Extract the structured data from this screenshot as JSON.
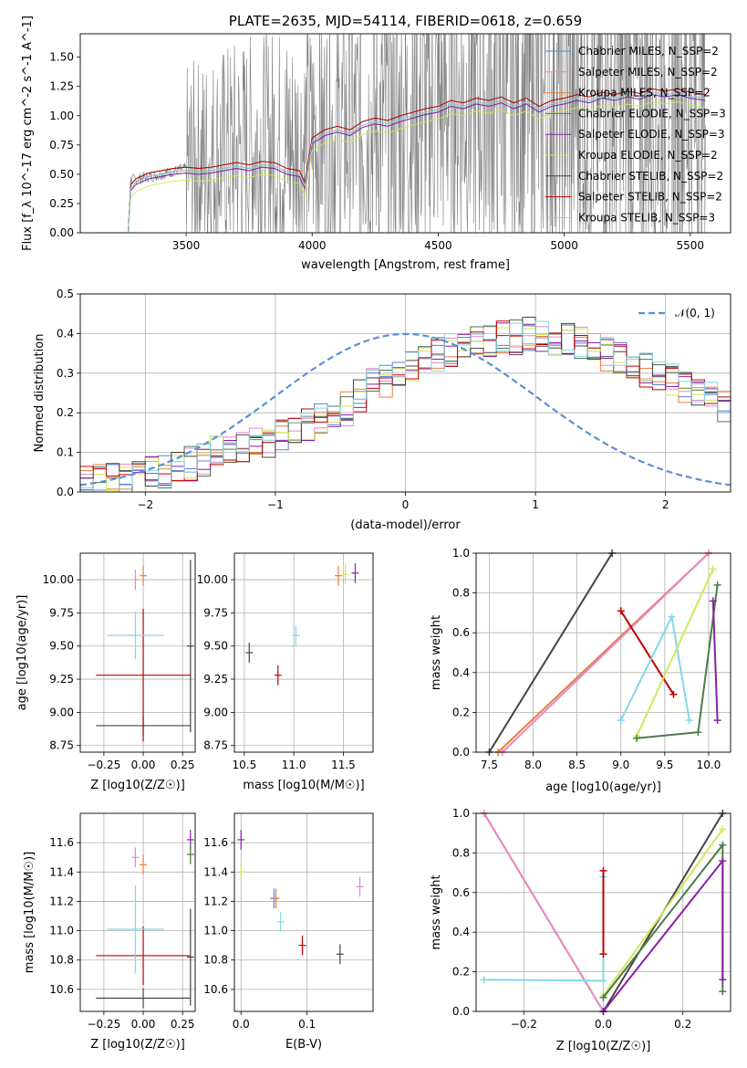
{
  "chart_data": [
    {
      "type": "line",
      "title": "PLATE=2635, MJD=54114, FIBERID=0618, z=0.659",
      "xlabel": "wavelength [Angstrom, rest frame]",
      "ylabel": "Flux [f_λ 10^-17 erg cm^-2 s^-1 A^-1]",
      "xlim": [
        3080,
        5660
      ],
      "ylim": [
        0,
        1.7
      ],
      "xticks": [
        "3500",
        "4000",
        "4500",
        "5000",
        "5500"
      ],
      "yticks": [
        "0.00",
        "0.25",
        "0.50",
        "0.75",
        "1.00",
        "1.25",
        "1.50"
      ],
      "grid": false,
      "legend": "top-right",
      "observed": {
        "x": [
          3140,
          3270,
          3280,
          3400,
          3500,
          3560,
          3700,
          3850,
          3950,
          4000,
          4200,
          4400,
          4550,
          4700,
          4850,
          5000,
          5200,
          5400,
          5560
        ],
        "y": [
          0,
          0,
          0.45,
          0.5,
          0.55,
          0.6,
          0.7,
          0.75,
          0.7,
          0.8,
          0.9,
          0.95,
          1.15,
          1.1,
          1.05,
          1.1,
          1.15,
          1.2,
          1.2
        ]
      },
      "model_x": [
        3270,
        3280,
        3300,
        3350,
        3400,
        3450,
        3500,
        3550,
        3600,
        3650,
        3700,
        3750,
        3800,
        3850,
        3900,
        3950,
        3970,
        4000,
        4050,
        4100,
        4150,
        4200,
        4250,
        4300,
        4350,
        4400,
        4450,
        4500,
        4550,
        4600,
        4650,
        4700,
        4750,
        4800,
        4850,
        4900,
        4950,
        5000,
        5050,
        5100,
        5150,
        5200,
        5250,
        5300,
        5350,
        5400,
        5450,
        5500,
        5560
      ],
      "model_base": [
        0.0,
        0.38,
        0.43,
        0.48,
        0.5,
        0.52,
        0.53,
        0.52,
        0.53,
        0.55,
        0.57,
        0.55,
        0.58,
        0.57,
        0.52,
        0.5,
        0.4,
        0.78,
        0.85,
        0.88,
        0.85,
        0.92,
        0.95,
        0.93,
        0.97,
        1.0,
        1.03,
        1.05,
        1.1,
        1.08,
        1.12,
        1.1,
        1.13,
        1.08,
        1.12,
        1.05,
        1.1,
        1.12,
        1.15,
        1.13,
        1.17,
        1.15,
        1.18,
        1.16,
        1.2,
        1.18,
        1.2,
        1.17,
        1.15
      ],
      "series": [
        {
          "name": "Chabrier MILES, N_SSP=2",
          "color": "#5b7fdc",
          "offset": 0.0
        },
        {
          "name": "Salpeter MILES, N_SSP=2",
          "color": "#e888c8",
          "offset": 0.0
        },
        {
          "name": "Kroupa MILES, N_SSP=2",
          "color": "#e87e38",
          "offset": 0.0
        },
        {
          "name": "Chabrier ELODIE, N_SSP=3",
          "color": "#4c7a4c",
          "offset": -0.02
        },
        {
          "name": "Salpeter ELODIE, N_SSP=3",
          "color": "#8a1fa8",
          "offset": -0.02
        },
        {
          "name": "Kroupa ELODIE, N_SSP=2",
          "color": "#cfe858",
          "offset": -0.08
        },
        {
          "name": "Chabrier STELIB, N_SSP=2",
          "color": "#444444",
          "offset": 0.03
        },
        {
          "name": "Salpeter STELIB, N_SSP=2",
          "color": "#c00000",
          "offset": 0.03
        },
        {
          "name": "Kroupa STELIB, N_SSP=3",
          "color": "#80d8e8",
          "offset": 0.0
        }
      ]
    },
    {
      "type": "line",
      "xlabel": "(data-model)/error",
      "ylabel": "Normed distribution",
      "xlim": [
        -2.5,
        2.5
      ],
      "ylim": [
        0,
        0.5
      ],
      "xticks": [
        "−2",
        "−1",
        "0",
        "1",
        "2"
      ],
      "yticks": [
        "0.0",
        "0.1",
        "0.2",
        "0.3",
        "0.4",
        "0.5"
      ],
      "grid": true,
      "legend": "top-right",
      "reference": {
        "name": "𝒩(0, 1)",
        "color": "#5b8fdc"
      },
      "bin_edges_range": [
        -2.5,
        2.5
      ],
      "bin_width": 0.1,
      "base_heights": [
        0.02,
        0.03,
        0.03,
        0.03,
        0.04,
        0.05,
        0.05,
        0.06,
        0.07,
        0.08,
        0.1,
        0.1,
        0.11,
        0.12,
        0.13,
        0.15,
        0.15,
        0.17,
        0.19,
        0.2,
        0.21,
        0.24,
        0.27,
        0.28,
        0.3,
        0.32,
        0.33,
        0.35,
        0.36,
        0.37,
        0.38,
        0.38,
        0.39,
        0.39,
        0.4,
        0.4,
        0.39,
        0.39,
        0.38,
        0.37,
        0.35,
        0.34,
        0.33,
        0.31,
        0.3,
        0.28,
        0.27,
        0.26,
        0.24,
        0.22
      ]
    },
    {
      "type": "scatter",
      "xlabel": "Z [log10(Z/Z☉)]",
      "ylabel": "age  [log10(age/yr)]",
      "xlim": [
        -0.4,
        0.33
      ],
      "ylim": [
        8.7,
        10.2
      ],
      "xticks": [
        "−0.25",
        "0.00",
        "0.25"
      ],
      "yticks": [
        "8.75",
        "9.00",
        "9.25",
        "9.50",
        "9.75",
        "10.00"
      ],
      "grid": true,
      "points": [
        {
          "x": 0.0,
          "y": 8.9,
          "xerr": 0.3,
          "yerr": 0.0,
          "color": "#444444"
        },
        {
          "x": 0.3,
          "y": 9.5,
          "xerr": 0.0,
          "yerr": 0.65,
          "color": "#444444"
        },
        {
          "x": 0.0,
          "y": 9.28,
          "xerr": 0.3,
          "yerr": 0.5,
          "color": "#c00000"
        },
        {
          "x": -0.05,
          "y": 9.58,
          "xerr": 0.18,
          "yerr": 0.18,
          "color": "#80d8e8"
        },
        {
          "x": -0.05,
          "y": 10.0,
          "xerr": 0.0,
          "yerr": 0.0,
          "color": "#e888c8"
        },
        {
          "x": 0.0,
          "y": 10.03,
          "xerr": 0.0,
          "yerr": 0.0,
          "color": "#e87e38"
        }
      ]
    },
    {
      "type": "scatter",
      "xlabel": "mass [log10(M/M☉)]",
      "ylabel": "",
      "xlim": [
        10.4,
        11.8
      ],
      "ylim": [
        8.7,
        10.2
      ],
      "xticks": [
        "10.5",
        "11.0",
        "11.5"
      ],
      "yticks": [
        "8.75",
        "9.00",
        "9.25",
        "9.50",
        "9.75",
        "10.00"
      ],
      "grid": true,
      "points": [
        {
          "x": 10.55,
          "y": 9.45,
          "xerr": 0.0,
          "yerr": 0.0,
          "color": "#444444"
        },
        {
          "x": 10.84,
          "y": 9.28,
          "xerr": 0.0,
          "yerr": 0.0,
          "color": "#c00000"
        },
        {
          "x": 11.02,
          "y": 9.58,
          "xerr": 0.0,
          "yerr": 0.0,
          "color": "#80d8e8"
        },
        {
          "x": 11.45,
          "y": 10.03,
          "xerr": 0.0,
          "yerr": 0.0,
          "color": "#e87e38"
        },
        {
          "x": 11.52,
          "y": 10.04,
          "xerr": 0.0,
          "yerr": 0.0,
          "color": "#cfe858"
        },
        {
          "x": 11.62,
          "y": 10.05,
          "xerr": 0.0,
          "yerr": 0.0,
          "color": "#8a1fa8"
        }
      ]
    },
    {
      "type": "line",
      "xlabel": "age  [log10(age/yr)]",
      "ylabel": "mass weight",
      "xlim": [
        7.35,
        10.25
      ],
      "ylim": [
        0,
        1.0
      ],
      "xticks": [
        "7.5",
        "8.0",
        "8.5",
        "9.0",
        "9.5",
        "10.0"
      ],
      "yticks": [
        "0.0",
        "0.2",
        "0.4",
        "0.6",
        "0.8",
        "1.0"
      ],
      "grid": true,
      "series": [
        {
          "color": "#444444",
          "x": [
            7.5,
            8.9
          ],
          "y": [
            0.0,
            1.0
          ]
        },
        {
          "color": "#e87e38",
          "x": [
            7.6,
            10.0
          ],
          "y": [
            0.0,
            1.0
          ]
        },
        {
          "color": "#e888c8",
          "x": [
            7.65,
            10.0
          ],
          "y": [
            0.0,
            1.0
          ]
        },
        {
          "color": "#c00000",
          "x": [
            9.0,
            9.6
          ],
          "y": [
            0.71,
            0.29
          ]
        },
        {
          "color": "#80d8e8",
          "x": [
            9.0,
            9.58,
            9.78
          ],
          "y": [
            0.16,
            0.68,
            0.16
          ]
        },
        {
          "color": "#cfe858",
          "x": [
            9.18,
            10.05
          ],
          "y": [
            0.08,
            0.92
          ]
        },
        {
          "color": "#4c7a4c",
          "x": [
            9.18,
            9.88,
            10.1
          ],
          "y": [
            0.07,
            0.1,
            0.84
          ]
        },
        {
          "color": "#8a1fa8",
          "x": [
            10.05,
            10.1
          ],
          "y": [
            0.76,
            0.16
          ]
        }
      ]
    },
    {
      "type": "scatter",
      "xlabel": "Z [log10(Z/Z☉)]",
      "ylabel": "mass [log10(M/M☉)]",
      "xlim": [
        -0.4,
        0.33
      ],
      "ylim": [
        10.45,
        11.8
      ],
      "xticks": [
        "−0.25",
        "0.00",
        "0.25"
      ],
      "yticks": [
        "10.6",
        "10.8",
        "11.0",
        "11.2",
        "11.4",
        "11.6"
      ],
      "grid": true,
      "points": [
        {
          "x": 0.0,
          "y": 10.54,
          "xerr": 0.3,
          "yerr": 0.0,
          "color": "#444444"
        },
        {
          "x": 0.3,
          "y": 10.82,
          "xerr": 0.0,
          "yerr": 0.33,
          "color": "#444444"
        },
        {
          "x": 0.0,
          "y": 10.83,
          "xerr": 0.3,
          "yerr": 0.2,
          "color": "#c00000"
        },
        {
          "x": -0.05,
          "y": 11.01,
          "xerr": 0.18,
          "yerr": 0.3,
          "color": "#80d8e8"
        },
        {
          "x": -0.05,
          "y": 11.5,
          "xerr": 0.0,
          "yerr": 0.0,
          "color": "#e888c8"
        },
        {
          "x": 0.0,
          "y": 11.45,
          "xerr": 0.0,
          "yerr": 0.0,
          "color": "#e87e38"
        },
        {
          "x": 0.3,
          "y": 11.52,
          "xerr": 0.0,
          "yerr": 0.0,
          "color": "#cfe858"
        },
        {
          "x": 0.3,
          "y": 11.62,
          "xerr": 0.0,
          "yerr": 0.0,
          "color": "#8a1fa8"
        },
        {
          "x": 0.3,
          "y": 11.52,
          "xerr": 0.0,
          "yerr": 0.0,
          "color": "#4c7a4c"
        }
      ]
    },
    {
      "type": "scatter",
      "xlabel": "E(B-V)",
      "ylabel": "",
      "xlim": [
        -0.01,
        0.2
      ],
      "ylim": [
        10.45,
        11.8
      ],
      "xticks": [
        "0.0",
        "0.1"
      ],
      "yticks": [
        "10.6",
        "10.8",
        "11.0",
        "11.2",
        "11.4",
        "11.6"
      ],
      "grid": true,
      "points": [
        {
          "x": 0.0,
          "y": 11.62,
          "xerr": 0.0,
          "yerr": 0.0,
          "color": "#8a1fa8"
        },
        {
          "x": 0.0,
          "y": 11.4,
          "xerr": 0.0,
          "yerr": 0.0,
          "color": "#cfe858"
        },
        {
          "x": 0.05,
          "y": 11.22,
          "xerr": 0.0,
          "yerr": 0.0,
          "color": "#5b7fdc"
        },
        {
          "x": 0.053,
          "y": 11.22,
          "xerr": 0.0,
          "yerr": 0.0,
          "color": "#e87e38"
        },
        {
          "x": 0.06,
          "y": 11.06,
          "xerr": 0.0,
          "yerr": 0.0,
          "color": "#80d8e8"
        },
        {
          "x": 0.093,
          "y": 10.9,
          "xerr": 0.0,
          "yerr": 0.0,
          "color": "#c00000"
        },
        {
          "x": 0.15,
          "y": 10.84,
          "xerr": 0.0,
          "yerr": 0.0,
          "color": "#444444"
        },
        {
          "x": 0.18,
          "y": 11.3,
          "xerr": 0.0,
          "yerr": 0.0,
          "color": "#e888c8"
        }
      ]
    },
    {
      "type": "line",
      "xlabel": "Z [log10(Z/Z☉)]",
      "ylabel": "mass weight",
      "xlim": [
        -0.32,
        0.32
      ],
      "ylim": [
        0,
        1.0
      ],
      "xticks": [
        "−0.2",
        "0.0",
        "0.2"
      ],
      "yticks": [
        "0.0",
        "0.2",
        "0.4",
        "0.6",
        "0.8",
        "1.0"
      ],
      "grid": true,
      "series": [
        {
          "color": "#e87e38",
          "x": [
            -0.3,
            0.0
          ],
          "y": [
            1.0,
            0.0
          ]
        },
        {
          "color": "#e888c8",
          "x": [
            -0.3,
            0.0
          ],
          "y": [
            1.0,
            0.0
          ]
        },
        {
          "color": "#80d8e8",
          "x": [
            -0.3,
            0.0,
            0.0
          ],
          "y": [
            0.16,
            0.155,
            0.68
          ]
        },
        {
          "color": "#c00000",
          "x": [
            0.0,
            0.0
          ],
          "y": [
            0.71,
            0.29
          ]
        },
        {
          "color": "#444444",
          "x": [
            0.0,
            0.3
          ],
          "y": [
            0.0,
            1.0
          ]
        },
        {
          "color": "#cfe858",
          "x": [
            0.0,
            0.3
          ],
          "y": [
            0.08,
            0.92
          ]
        },
        {
          "color": "#4c7a4c",
          "x": [
            0.0,
            0.3,
            0.3
          ],
          "y": [
            0.07,
            0.84,
            0.1
          ]
        },
        {
          "color": "#8a1fa8",
          "x": [
            0.0,
            0.3,
            0.3
          ],
          "y": [
            0.0,
            0.76,
            0.16
          ]
        }
      ]
    }
  ]
}
